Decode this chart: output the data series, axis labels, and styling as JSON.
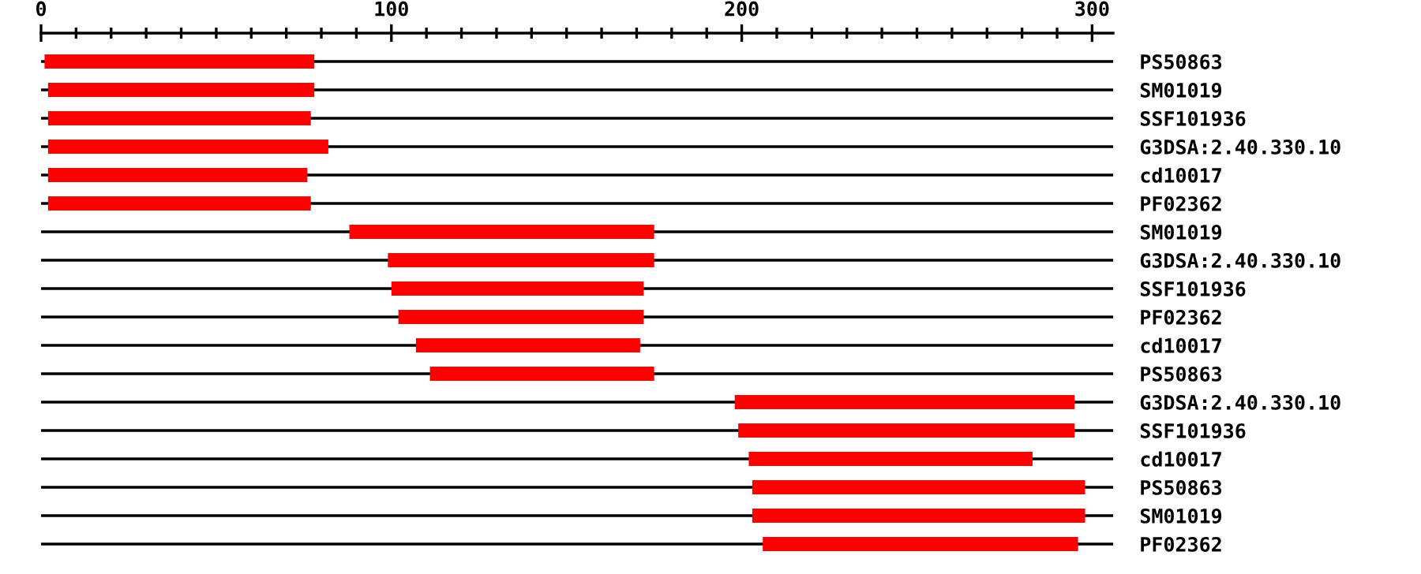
{
  "chart_data": {
    "type": "bar",
    "orientation": "horizontal",
    "categories": [
      "PS50863",
      "SM01019",
      "SSF101936",
      "G3DSA:2.40.330.10",
      "cd10017",
      "PF02362",
      "SM01019",
      "G3DSA:2.40.330.10",
      "SSF101936",
      "PF02362",
      "cd10017",
      "PS50863",
      "G3DSA:2.40.330.10",
      "SSF101936",
      "cd10017",
      "PS50863",
      "SM01019",
      "PF02362"
    ],
    "base": [
      1,
      2,
      2,
      2,
      2,
      2,
      88,
      99,
      100,
      102,
      107,
      111,
      198,
      199,
      202,
      203,
      203,
      206
    ],
    "values": [
      77,
      76,
      75,
      80,
      74,
      75,
      87,
      76,
      72,
      70,
      64,
      64,
      97,
      96,
      81,
      95,
      95,
      90
    ],
    "color": "#ff0000",
    "xlim": [
      0,
      306
    ],
    "xticks": [
      0,
      {
        "value": 10,
        "label": null
      },
      {
        "value": 20,
        "label": null
      },
      {
        "value": 30,
        "label": null
      },
      {
        "value": 40,
        "label": null
      },
      {
        "value": 50,
        "label": null
      },
      {
        "value": 60,
        "label": null
      },
      {
        "value": 70,
        "label": null
      },
      {
        "value": 80,
        "label": null
      },
      {
        "value": 90,
        "label": null
      },
      100,
      {
        "value": 110,
        "label": null
      },
      {
        "value": 120,
        "label": null
      },
      {
        "value": 130,
        "label": null
      },
      {
        "value": 140,
        "label": null
      },
      {
        "value": 150,
        "label": null
      },
      {
        "value": 160,
        "label": null
      },
      {
        "value": 170,
        "label": null
      },
      {
        "value": 180,
        "label": null
      },
      {
        "value": 190,
        "label": null
      },
      200,
      {
        "value": 210,
        "label": null
      },
      {
        "value": 220,
        "label": null
      },
      {
        "value": 230,
        "label": null
      },
      {
        "value": 240,
        "label": null
      },
      {
        "value": 250,
        "label": null
      },
      {
        "value": 260,
        "label": null
      },
      {
        "value": 270,
        "label": null
      },
      {
        "value": 280,
        "label": null
      },
      {
        "value": 290,
        "label": null
      },
      300
    ],
    "grid": "y"
  }
}
